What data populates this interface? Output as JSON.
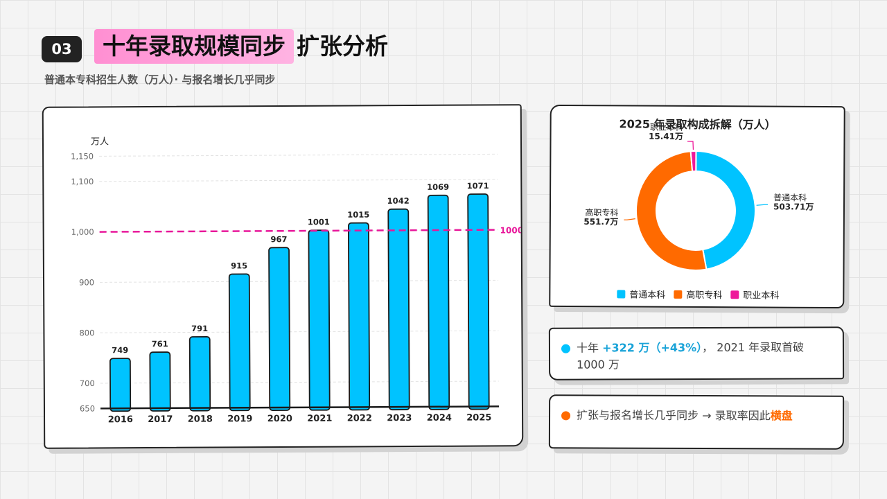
{
  "header": {
    "section_number": "03",
    "title_highlight": "十年录取规模同步",
    "title_rest": "扩张分析",
    "subtitle": "普通本专科招生人数（万人）· 与报名增长几乎同步"
  },
  "colors": {
    "bar": "#00c3ff",
    "ref_line": "#e8179a",
    "undergrad": "#00c3ff",
    "vocational": "#ff6a00",
    "polytechnic": "#ee1a9a"
  },
  "chart_data": [
    {
      "type": "bar",
      "ylabel": "万人",
      "categories": [
        "2016",
        "2017",
        "2018",
        "2019",
        "2020",
        "2021",
        "2022",
        "2023",
        "2024",
        "2025"
      ],
      "values": [
        749,
        761,
        791,
        915,
        967,
        1001,
        1015,
        1042,
        1069,
        1071
      ],
      "value_labels": [
        "749",
        "761",
        "791",
        "915",
        "967",
        "1001",
        "1015",
        "1042",
        "1069",
        "1071"
      ],
      "ylim": [
        650,
        1150
      ],
      "yticks": [
        650,
        700,
        800,
        900,
        1000,
        1100,
        1150
      ],
      "ytick_labels": [
        "650",
        "700",
        "800",
        "900",
        "1,000",
        "1,100",
        "1,150"
      ],
      "reference_line": {
        "value": 1000,
        "label": "1000"
      }
    },
    {
      "type": "pie",
      "title": "2025 年录取构成拆解（万人）",
      "series": [
        {
          "name": "普通本科",
          "value": 503.71,
          "label": "503.71万",
          "color": "#00c3ff"
        },
        {
          "name": "高职专科",
          "value": 551.7,
          "label": "551.7万",
          "color": "#ff6a00"
        },
        {
          "name": "职业本科",
          "value": 15.41,
          "label": "15.41万",
          "color": "#ee1a9a"
        }
      ],
      "legend_position": "bottom"
    }
  ],
  "notes": [
    {
      "pre": "十年 ",
      "highlight": "+322 万（+43%）",
      "post": "， 2021 年录取首破 1000 万"
    },
    {
      "pre": "扩张与报名增长几乎同步 → 录取率因此",
      "highlight": "横盘",
      "post": ""
    }
  ]
}
